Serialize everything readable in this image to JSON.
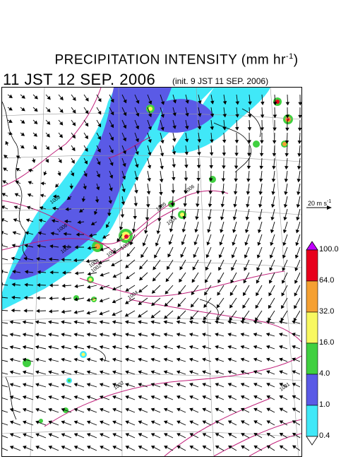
{
  "header": {
    "title_main": "PRECIPITATION INTENSITY (mm hr",
    "title_exp": "-1",
    "title_close": ")",
    "valid_time": "11 JST 12 SEP. 2006",
    "init_time": "(init. 9 JST 11 SEP. 2006)"
  },
  "reference_vector": {
    "label_main": "20 m s",
    "label_exp": "-1"
  },
  "colorbar": {
    "labels": [
      "100.0",
      "64.0",
      "32.0",
      "16.0",
      "4.0",
      "1.0",
      "0.4"
    ],
    "colors": [
      "#e8001c",
      "#f5a032",
      "#f8f860",
      "#40d040",
      "#5a5ae6",
      "#40e8f8"
    ],
    "top_triangle_color": "#c000ff",
    "bottom_triangle_color": "#ffffff"
  },
  "isobar_labels": [
    "1008",
    "1006",
    "1006",
    "1004",
    "1002",
    "1002",
    "1004",
    "1005",
    "1006",
    "1004",
    "1004",
    "1002",
    "1001"
  ],
  "colors": {
    "isobar": "#c0207a",
    "precip_light": "#40e8f8",
    "precip_moderate": "#5a5ae6",
    "grid": "#9a9a9a"
  }
}
